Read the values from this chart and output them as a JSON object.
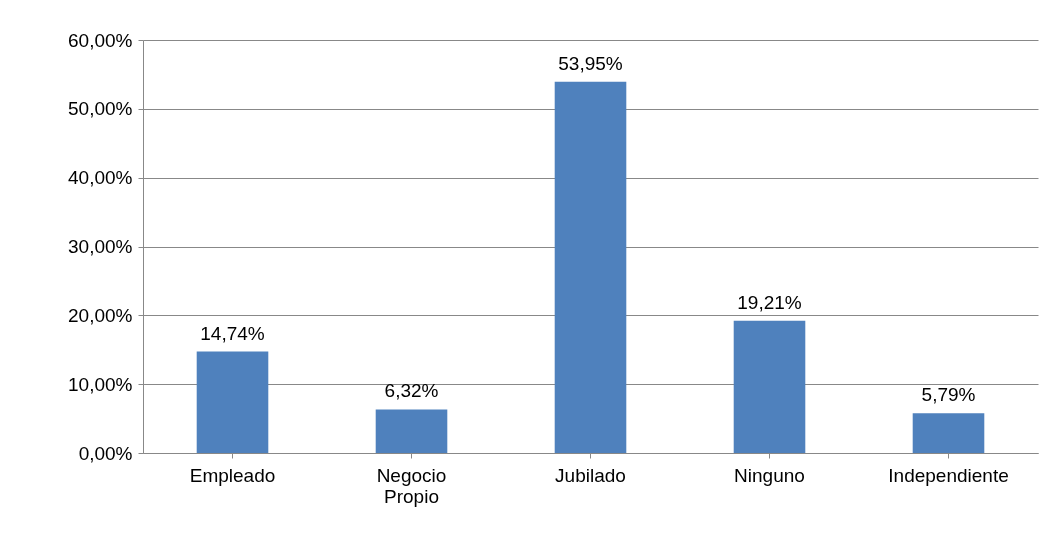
{
  "chart_data": {
    "type": "bar",
    "categories": [
      "Empleado",
      "Negocio Propio",
      "Jubilado",
      "Ninguno",
      "Independiente"
    ],
    "values": [
      14.74,
      6.32,
      53.95,
      19.21,
      5.79
    ],
    "value_labels": [
      "14,74%",
      "6,32%",
      "53,95%",
      "19,21%",
      "5,79%"
    ],
    "color": "#4f81bd",
    "ylim": [
      0,
      60
    ],
    "yticks": [
      {
        "value": 0,
        "label": "0,00%"
      },
      {
        "value": 10,
        "label": "10,00%"
      },
      {
        "value": 20,
        "label": "20,00%"
      },
      {
        "value": 30,
        "label": "30,00%"
      },
      {
        "value": 40,
        "label": "40,00%"
      },
      {
        "value": 50,
        "label": "50,00%"
      },
      {
        "value": 60,
        "label": "60,00%"
      }
    ],
    "grid": "y"
  }
}
